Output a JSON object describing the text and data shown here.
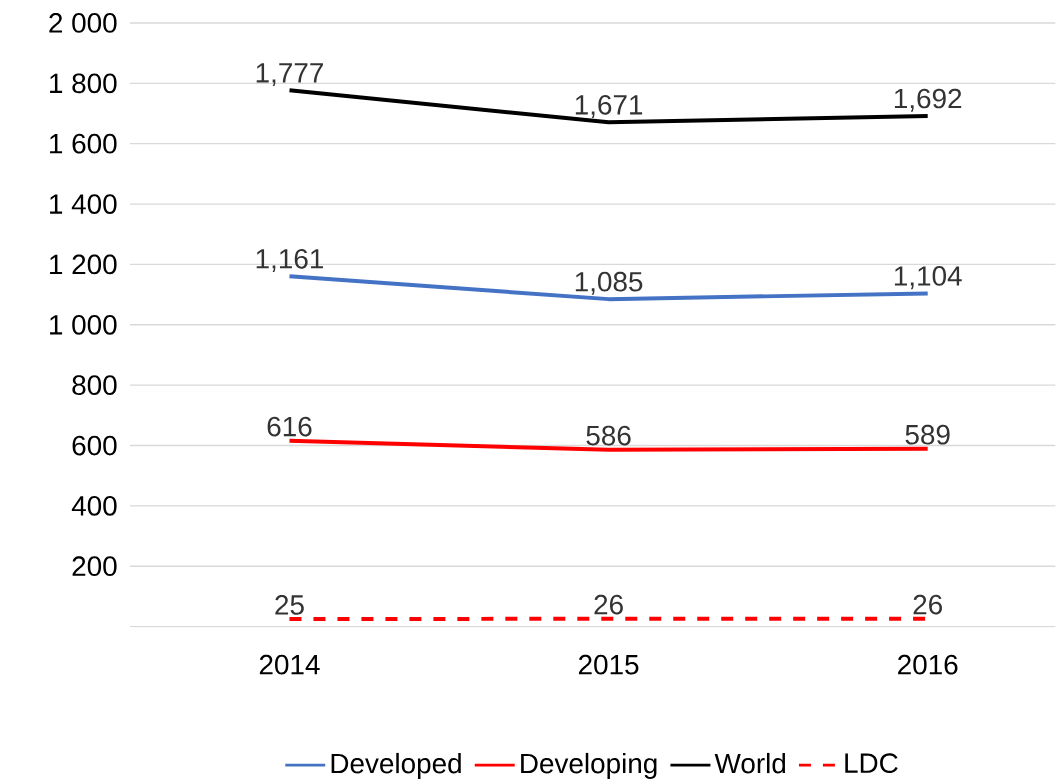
{
  "chart_data": {
    "type": "line",
    "categories": [
      "2014",
      "2015",
      "2016"
    ],
    "series": [
      {
        "name": "Developed",
        "color": "#4472c4",
        "values": [
          1161,
          1085,
          1104
        ],
        "value_labels": [
          "1,161",
          "1,085",
          "1,104"
        ]
      },
      {
        "name": "Developing",
        "color": "#ff0000",
        "values": [
          616,
          586,
          589
        ],
        "value_labels": [
          "616",
          "586",
          "589"
        ]
      },
      {
        "name": "World",
        "color": "#000000",
        "values": [
          1777,
          1671,
          1692
        ],
        "value_labels": [
          "1,777",
          "1,671",
          "1,692"
        ]
      },
      {
        "name": "LDC",
        "color": "#ff0000",
        "line_style": "dashed",
        "values": [
          25,
          26,
          26
        ],
        "value_labels": [
          "25",
          "26",
          "26"
        ]
      }
    ],
    "ylim": [
      0,
      2000
    ],
    "yticks": [
      {
        "value": 0,
        "label": null
      },
      200,
      400,
      600,
      800,
      {
        "value": 1000,
        "label": "1 000"
      },
      {
        "value": 1200,
        "label": "1 200"
      },
      {
        "value": 1400,
        "label": "1 400"
      },
      {
        "value": 1600,
        "label": "1 600"
      },
      {
        "value": 1800,
        "label": "1 800"
      },
      {
        "value": 2000,
        "label": "2 000"
      }
    ],
    "grid": "y",
    "legend": "bottom"
  }
}
